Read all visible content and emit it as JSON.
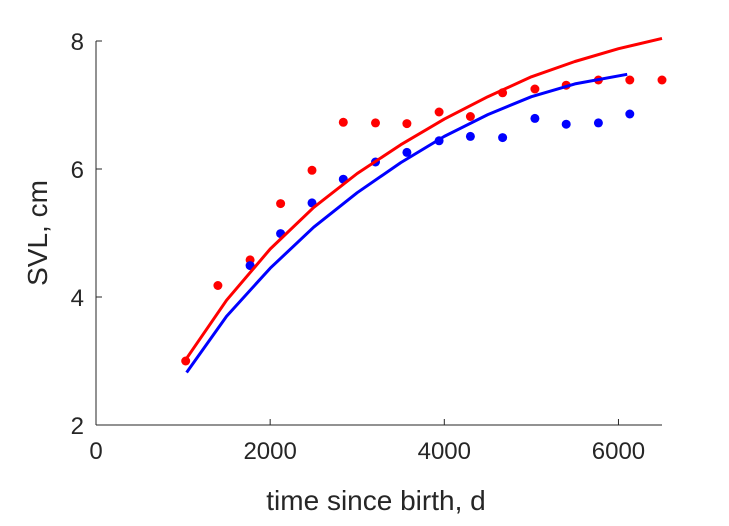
{
  "chart_data": {
    "type": "scatter",
    "xlabel": "time since birth, d",
    "ylabel": "SVL, cm",
    "xlim": [
      0,
      6500
    ],
    "ylim": [
      2,
      8
    ],
    "xticks": [
      "0",
      "2000",
      "4000",
      "6000"
    ],
    "yticks": [
      "2",
      "4",
      "6",
      "8"
    ],
    "grid": false,
    "legend": "none",
    "series": [
      {
        "color": "#ff0000",
        "marker": "point",
        "points": [
          [
            1030,
            3.0
          ],
          [
            1400,
            4.18
          ],
          [
            1770,
            4.58
          ],
          [
            2120,
            5.46
          ],
          [
            2480,
            5.98
          ],
          [
            2840,
            6.73
          ],
          [
            3210,
            6.72
          ],
          [
            3570,
            6.71
          ],
          [
            3940,
            6.89
          ],
          [
            4300,
            6.82
          ],
          [
            4670,
            7.19
          ],
          [
            5040,
            7.25
          ],
          [
            5400,
            7.31
          ],
          [
            5770,
            7.39
          ],
          [
            6130,
            7.39
          ],
          [
            6500,
            7.39
          ]
        ]
      },
      {
        "color": "#0000ff",
        "marker": "point",
        "points": [
          [
            1770,
            4.49
          ],
          [
            2120,
            4.99
          ],
          [
            2480,
            5.47
          ],
          [
            2840,
            5.84
          ],
          [
            3210,
            6.11
          ],
          [
            3570,
            6.26
          ],
          [
            3940,
            6.44
          ],
          [
            4300,
            6.51
          ],
          [
            4670,
            6.49
          ],
          [
            5040,
            6.79
          ],
          [
            5400,
            6.7
          ],
          [
            5770,
            6.72
          ],
          [
            6130,
            6.86
          ]
        ]
      },
      {
        "color": "#ff0000",
        "marker": "line",
        "points": [
          [
            1030,
            3.02
          ],
          [
            1500,
            3.95
          ],
          [
            2000,
            4.75
          ],
          [
            2500,
            5.4
          ],
          [
            3000,
            5.93
          ],
          [
            3500,
            6.38
          ],
          [
            4000,
            6.78
          ],
          [
            4500,
            7.13
          ],
          [
            5000,
            7.44
          ],
          [
            5500,
            7.68
          ],
          [
            6000,
            7.88
          ],
          [
            6500,
            8.04
          ]
        ]
      },
      {
        "color": "#0000ff",
        "marker": "line",
        "points": [
          [
            1040,
            2.82
          ],
          [
            1500,
            3.7
          ],
          [
            2000,
            4.45
          ],
          [
            2500,
            5.09
          ],
          [
            3000,
            5.63
          ],
          [
            3500,
            6.1
          ],
          [
            4000,
            6.51
          ],
          [
            4500,
            6.85
          ],
          [
            5000,
            7.13
          ],
          [
            5500,
            7.33
          ],
          [
            6100,
            7.48
          ]
        ]
      }
    ]
  }
}
